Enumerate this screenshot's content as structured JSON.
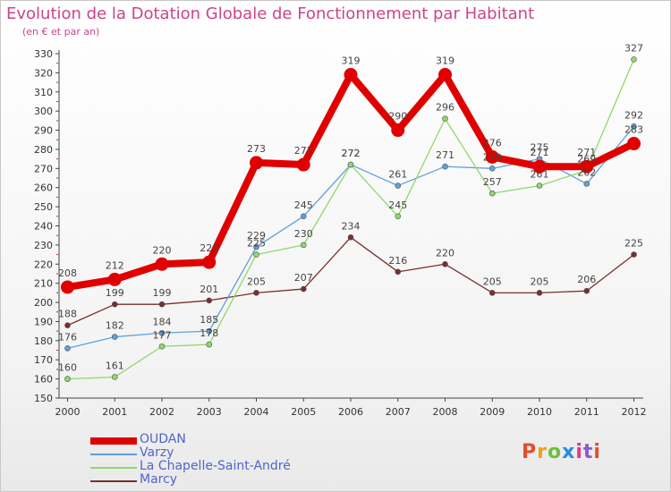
{
  "title": "Evolution de la Dotation Globale de Fonctionnement par Habitant",
  "subtitle": "(en € et par an)",
  "logo_text": "Proxiti",
  "chart_data": {
    "type": "line",
    "title": "Evolution de la Dotation Globale de Fonctionnement par Habitant",
    "subtitle": "(en € et par an)",
    "xlabel": "",
    "ylabel": "",
    "x": [
      "2000",
      "2001",
      "2002",
      "2003",
      "2004",
      "2005",
      "2006",
      "2007",
      "2008",
      "2009",
      "2010",
      "2011",
      "2012"
    ],
    "ylim": [
      150,
      330
    ],
    "yticks": [
      150,
      160,
      170,
      180,
      190,
      200,
      210,
      220,
      230,
      240,
      250,
      260,
      270,
      280,
      290,
      300,
      310,
      320,
      330
    ],
    "grid": false,
    "legend_position": "bottom-left",
    "series": [
      {
        "name": "OUDAN",
        "color": "#e00000",
        "values": [
          208,
          212,
          220,
          221,
          273,
          272,
          319,
          290,
          319,
          276,
          271,
          271,
          283
        ]
      },
      {
        "name": "Varzy",
        "color": "#5fa0d8",
        "values": [
          176,
          182,
          184,
          185,
          229,
          245,
          272,
          261,
          271,
          270,
          275,
          262,
          292
        ]
      },
      {
        "name": "La Chapelle-Saint-André",
        "color": "#8fd86a",
        "values": [
          160,
          161,
          177,
          178,
          225,
          230,
          272,
          245,
          296,
          257,
          261,
          269,
          327
        ]
      },
      {
        "name": "Marcy",
        "color": "#7a2e2e",
        "values": [
          188,
          199,
          199,
          201,
          205,
          207,
          234,
          216,
          220,
          205,
          205,
          206,
          225
        ]
      }
    ]
  }
}
